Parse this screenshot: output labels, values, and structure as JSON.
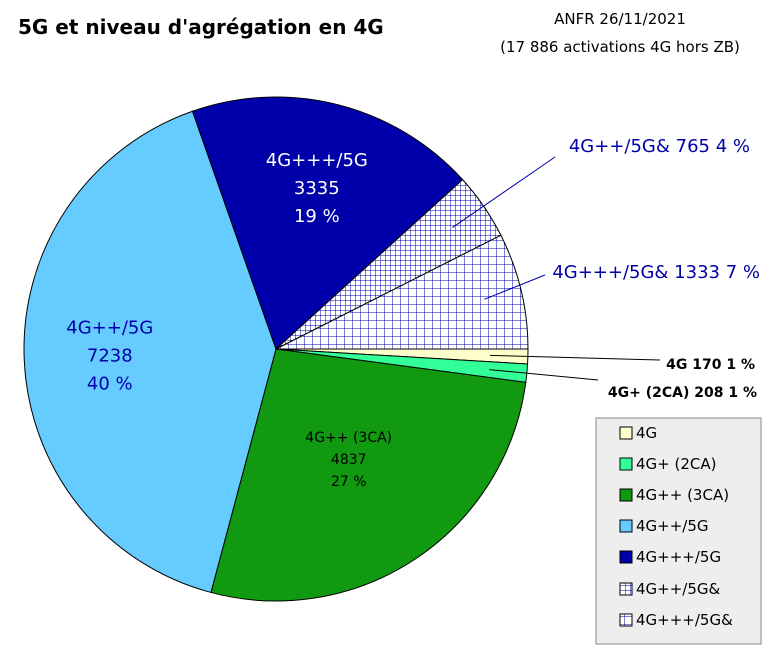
{
  "chart_data": {
    "type": "pie",
    "title": "5G et niveau d'agrégation en 4G",
    "source_line1": "ANFR 26/11/2021",
    "source_line2": "(17 886 activations 4G hors ZB)",
    "slices": [
      {
        "name": "4G",
        "value": 170,
        "percent": "1 %",
        "color": "#ffffcc",
        "pattern": "",
        "label_style": "external",
        "ext_text": "4G 170 1 %"
      },
      {
        "name": "4G+ (2CA)",
        "value": 208,
        "percent": "1 %",
        "color": "#33ff99",
        "pattern": "",
        "label_style": "external",
        "ext_text": "4G+ (2CA) 208 1 %"
      },
      {
        "name": "4G++ (3CA)",
        "value": 4837,
        "percent": "27 %",
        "color": "#119911",
        "pattern": "",
        "label_style": "internal",
        "label_color": "#000000"
      },
      {
        "name": "4G++/5G",
        "value": 7238,
        "percent": "40 %",
        "color": "#66ccff",
        "pattern": "",
        "label_style": "internal",
        "label_color": "#0000aa"
      },
      {
        "name": "4G+++/5G",
        "value": 3335,
        "percent": "19 %",
        "color": "#0000aa",
        "pattern": "",
        "label_style": "internal",
        "label_color": "#ffffff"
      },
      {
        "name": "4G++/5G&",
        "value": 765,
        "percent": "4 %",
        "color": "#ffffff",
        "pattern": "small-grid",
        "label_style": "external",
        "ext_text": "4G++/5G& 765 4 %"
      },
      {
        "name": "4G+++/5G&",
        "value": 1333,
        "percent": "7 %",
        "color": "#ffffff",
        "pattern": "grid",
        "label_style": "external",
        "ext_text": "4G+++/5G& 1333 7 %"
      }
    ],
    "legend": {
      "placement": "bottom-right",
      "entries": [
        "4G",
        "4G+ (2CA)",
        "4G++ (3CA)",
        "4G++/5G",
        "4G+++/5G",
        "4G++/5G&",
        "4G+++/5G&"
      ]
    },
    "ext_label_color": "#0000aa"
  }
}
